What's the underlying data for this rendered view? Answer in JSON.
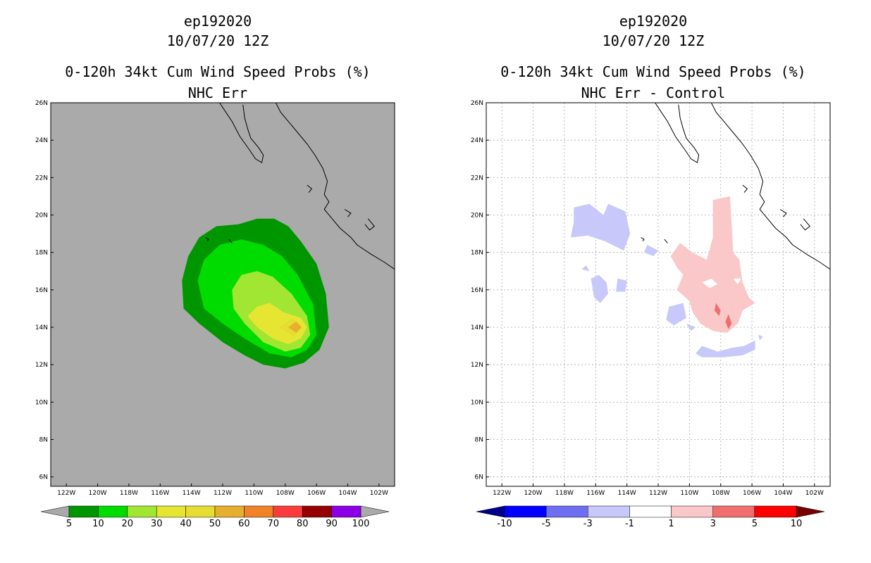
{
  "charts": [
    {
      "id": "left",
      "storm": "ep192020",
      "datetime": "10/07/20 12Z",
      "title": "0-120h 34kt Cum Wind Speed Probs (%)",
      "subtitle": "NHC Err",
      "background": "#aaaaaa",
      "grid": false
    },
    {
      "id": "right",
      "storm": "ep192020",
      "datetime": "10/07/20 12Z",
      "title": "0-120h 34kt Cum Wind Speed Probs (%)",
      "subtitle": "NHC Err - Control",
      "background": "#ffffff",
      "grid": true
    }
  ],
  "chart_data": [
    {
      "type": "heatmap",
      "title": "0-120h 34kt Cum Wind Speed Probs (%)",
      "subtitle": "NHC Err",
      "xlim": [
        -123,
        -101
      ],
      "ylim": [
        5.5,
        26
      ],
      "x_ticks": [
        -122,
        -120,
        -118,
        -116,
        -114,
        -112,
        -110,
        -108,
        -106,
        -104,
        -102
      ],
      "x_tick_labels": [
        "122W",
        "120W",
        "118W",
        "116W",
        "114W",
        "112W",
        "110W",
        "108W",
        "106W",
        "104W",
        "102W"
      ],
      "y_ticks": [
        6,
        8,
        10,
        12,
        14,
        16,
        18,
        20,
        22,
        24,
        26
      ],
      "y_tick_labels": [
        "6N",
        "8N",
        "10N",
        "12N",
        "14N",
        "16N",
        "18N",
        "20N",
        "22N",
        "24N",
        "26N"
      ],
      "colorbar": {
        "labels": [
          "5",
          "10",
          "20",
          "30",
          "40",
          "50",
          "60",
          "70",
          "80",
          "90",
          "100"
        ],
        "colors": [
          "#009600",
          "#00dc00",
          "#a0e632",
          "#e6e632",
          "#e6dc32",
          "#e6af2d",
          "#f08228",
          "#fa3c3c",
          "#960000",
          "#8c00e6"
        ],
        "ends": [
          "#aaaaaa",
          "#aaaaaa"
        ]
      },
      "contours": [
        {
          "level": 5,
          "color": "#009600",
          "points": [
            [
              -114.2,
              17.8
            ],
            [
              -113.5,
              18.8
            ],
            [
              -112.4,
              19.4
            ],
            [
              -111.0,
              19.5
            ],
            [
              -109.8,
              19.8
            ],
            [
              -108.7,
              19.8
            ],
            [
              -107.8,
              19.4
            ],
            [
              -107.0,
              18.6
            ],
            [
              -106.0,
              17.4
            ],
            [
              -105.4,
              15.8
            ],
            [
              -105.2,
              14.0
            ],
            [
              -105.8,
              12.8
            ],
            [
              -106.8,
              12.1
            ],
            [
              -108.0,
              11.8
            ],
            [
              -109.4,
              12.0
            ],
            [
              -110.6,
              12.5
            ],
            [
              -112.0,
              13.2
            ],
            [
              -113.5,
              14.2
            ],
            [
              -114.5,
              15.0
            ],
            [
              -114.6,
              16.5
            ]
          ]
        },
        {
          "level": 10,
          "color": "#00dc00",
          "points": [
            [
              -113.6,
              16.5
            ],
            [
              -113.2,
              17.6
            ],
            [
              -112.2,
              18.4
            ],
            [
              -110.8,
              18.7
            ],
            [
              -109.4,
              18.4
            ],
            [
              -108.2,
              17.8
            ],
            [
              -107.2,
              16.8
            ],
            [
              -106.2,
              15.2
            ],
            [
              -106.0,
              13.6
            ],
            [
              -106.6,
              12.8
            ],
            [
              -107.6,
              12.4
            ],
            [
              -109.0,
              12.6
            ],
            [
              -110.6,
              13.4
            ],
            [
              -112.0,
              14.2
            ],
            [
              -113.2,
              15.0
            ]
          ]
        },
        {
          "level": 20,
          "color": "#a0e632",
          "points": [
            [
              -111.4,
              16.0
            ],
            [
              -110.8,
              16.8
            ],
            [
              -109.8,
              17.0
            ],
            [
              -108.8,
              16.7
            ],
            [
              -107.6,
              15.8
            ],
            [
              -106.6,
              14.6
            ],
            [
              -106.4,
              13.6
            ],
            [
              -107.0,
              12.9
            ],
            [
              -108.0,
              12.7
            ],
            [
              -109.4,
              13.2
            ],
            [
              -110.6,
              14.2
            ],
            [
              -111.3,
              15.0
            ]
          ]
        },
        {
          "level": 30,
          "color": "#e6e632",
          "points": [
            [
              -110.4,
              14.6
            ],
            [
              -109.8,
              15.1
            ],
            [
              -109.0,
              15.3
            ],
            [
              -108.1,
              14.8
            ],
            [
              -107.0,
              14.5
            ],
            [
              -106.6,
              14.0
            ],
            [
              -107.0,
              13.4
            ],
            [
              -107.8,
              13.1
            ],
            [
              -108.8,
              13.4
            ],
            [
              -109.8,
              14.0
            ]
          ]
        },
        {
          "level": 40,
          "color": "#e6dc32",
          "points": [
            [
              -108.4,
              14.0
            ],
            [
              -107.5,
              14.5
            ],
            [
              -106.9,
              14.0
            ],
            [
              -107.5,
              13.5
            ]
          ]
        },
        {
          "level": 50,
          "color": "#e6af2d",
          "points": [
            [
              -107.8,
              14.0
            ],
            [
              -107.3,
              14.3
            ],
            [
              -106.95,
              14.0
            ],
            [
              -107.3,
              13.7
            ]
          ]
        }
      ]
    },
    {
      "type": "heatmap",
      "title": "0-120h 34kt Cum Wind Speed Probs (%)",
      "subtitle": "NHC Err - Control",
      "xlim": [
        -123,
        -101
      ],
      "ylim": [
        5.5,
        26
      ],
      "x_ticks": [
        -122,
        -120,
        -118,
        -116,
        -114,
        -112,
        -110,
        -108,
        -106,
        -104,
        -102
      ],
      "x_tick_labels": [
        "122W",
        "120W",
        "118W",
        "116W",
        "114W",
        "112W",
        "110W",
        "108W",
        "106W",
        "104W",
        "102W"
      ],
      "y_ticks": [
        6,
        8,
        10,
        12,
        14,
        16,
        18,
        20,
        22,
        24,
        26
      ],
      "y_tick_labels": [
        "6N",
        "8N",
        "10N",
        "12N",
        "14N",
        "16N",
        "18N",
        "20N",
        "22N",
        "24N",
        "26N"
      ],
      "colorbar": {
        "labels": [
          "-10",
          "-5",
          "-3",
          "-1",
          "1",
          "3",
          "5",
          "10"
        ],
        "colors": [
          "#0000ff",
          "#6e6ef0",
          "#c8c8fa",
          "#ffffff",
          "#fac8c8",
          "#f06e6e",
          "#ff0000"
        ],
        "ends": [
          "#00008c",
          "#780000"
        ]
      },
      "contours": [
        {
          "level": -1,
          "color": "#c8c8fa",
          "points": [
            [
              -117.4,
              20.4
            ],
            [
              -116.4,
              20.6
            ],
            [
              -115.5,
              20.0
            ],
            [
              -115.2,
              20.6
            ],
            [
              -114.1,
              20.2
            ],
            [
              -113.8,
              19.0
            ],
            [
              -114.2,
              18.1
            ],
            [
              -115.4,
              18.6
            ],
            [
              -116.5,
              18.9
            ],
            [
              -117.6,
              18.8
            ],
            [
              -117.4,
              19.6
            ]
          ]
        },
        {
          "level": -1,
          "color": "#c8c8fa",
          "points": [
            [
              -116.3,
              16.6
            ],
            [
              -115.8,
              16.8
            ],
            [
              -115.3,
              16.4
            ],
            [
              -115.2,
              15.8
            ],
            [
              -115.7,
              15.3
            ],
            [
              -116.1,
              15.6
            ]
          ]
        },
        {
          "level": -1,
          "color": "#c8c8fa",
          "points": [
            [
              -114.6,
              16.6
            ],
            [
              -114.0,
              16.5
            ],
            [
              -114.1,
              15.9
            ],
            [
              -114.7,
              15.9
            ]
          ]
        },
        {
          "level": -1,
          "color": "#c8c8fa",
          "points": [
            [
              -112.7,
              18.4
            ],
            [
              -112.0,
              18.1
            ],
            [
              -112.3,
              17.8
            ],
            [
              -112.9,
              18.0
            ]
          ]
        },
        {
          "level": -1,
          "color": "#c8c8fa",
          "points": [
            [
              -116.9,
              17.1
            ],
            [
              -116.6,
              17.3
            ],
            [
              -116.4,
              17.0
            ]
          ]
        },
        {
          "level": -1,
          "color": "#c8c8fa",
          "points": [
            [
              -111.3,
              15.1
            ],
            [
              -110.4,
              15.3
            ],
            [
              -110.2,
              14.5
            ],
            [
              -111.0,
              14.1
            ],
            [
              -111.5,
              14.4
            ]
          ]
        },
        {
          "level": -1,
          "color": "#c8c8fa",
          "points": [
            [
              -110.2,
              14.2
            ],
            [
              -109.6,
              14.0
            ],
            [
              -109.9,
              13.8
            ]
          ]
        },
        {
          "level": -1,
          "color": "#c8c8fa",
          "points": [
            [
              -109.6,
              12.6
            ],
            [
              -109.2,
              13.0
            ],
            [
              -108.2,
              12.7
            ],
            [
              -107.3,
              12.9
            ],
            [
              -106.5,
              13.0
            ],
            [
              -105.8,
              13.3
            ],
            [
              -105.8,
              12.8
            ],
            [
              -106.6,
              12.5
            ],
            [
              -107.8,
              12.4
            ],
            [
              -109.2,
              12.4
            ]
          ]
        },
        {
          "level": -1,
          "color": "#c8c8fa",
          "points": [
            [
              -105.6,
              13.6
            ],
            [
              -105.3,
              13.5
            ],
            [
              -105.5,
              13.3
            ]
          ]
        },
        {
          "level": 1,
          "color": "#fac8c8",
          "points": [
            [
              -108.5,
              20.8
            ],
            [
              -107.4,
              21.0
            ],
            [
              -107.3,
              19.5
            ],
            [
              -107.2,
              18.0
            ],
            [
              -106.8,
              17.6
            ],
            [
              -106.6,
              16.4
            ],
            [
              -106.2,
              15.6
            ],
            [
              -105.8,
              15.3
            ],
            [
              -106.6,
              14.9
            ],
            [
              -106.9,
              14.2
            ],
            [
              -107.6,
              13.7
            ],
            [
              -108.5,
              13.8
            ],
            [
              -109.3,
              14.2
            ],
            [
              -109.8,
              14.8
            ],
            [
              -110.0,
              15.4
            ],
            [
              -110.8,
              16.0
            ],
            [
              -110.4,
              16.8
            ],
            [
              -110.8,
              17.2
            ],
            [
              -111.2,
              17.8
            ],
            [
              -110.6,
              18.5
            ],
            [
              -109.8,
              18.0
            ],
            [
              -108.9,
              17.6
            ],
            [
              -108.5,
              18.8
            ]
          ]
        },
        {
          "level": 3,
          "color": "#f06e6e",
          "points": [
            [
              -108.3,
              15.3
            ],
            [
              -108.0,
              14.9
            ],
            [
              -108.1,
              14.6
            ],
            [
              -108.4,
              14.9
            ]
          ]
        },
        {
          "level": 3,
          "color": "#f06e6e",
          "points": [
            [
              -107.5,
              14.7
            ],
            [
              -107.3,
              14.2
            ],
            [
              -107.5,
              13.9
            ],
            [
              -107.7,
              14.3
            ]
          ]
        }
      ],
      "holes": [
        {
          "points": [
            [
              -109.2,
              16.4
            ],
            [
              -108.6,
              16.6
            ],
            [
              -108.2,
              16.3
            ],
            [
              -108.7,
              16.1
            ]
          ]
        },
        {
          "points": [
            [
              -107.2,
              16.6
            ],
            [
              -106.7,
              16.6
            ],
            [
              -106.9,
              16.3
            ]
          ]
        }
      ]
    }
  ]
}
